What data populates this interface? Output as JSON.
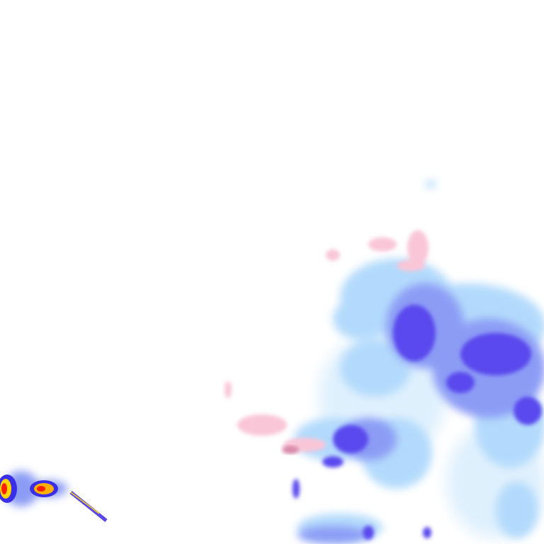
{
  "map": {
    "type": "precipitation-radar-tile",
    "colors": {
      "background": "#ffffff",
      "very_light_rain": "#d6ecfc",
      "light_rain": "#b3dafc",
      "moderate_rain": "#8c9cf5",
      "heavy_rain": "#5a48ee",
      "intense_rain": "#2a1ee8",
      "very_intense": "#ffd400",
      "extreme": "#ff2000",
      "snow_mix": "#f9c6d8",
      "snow_mix_heavy": "#d88aa8"
    }
  }
}
